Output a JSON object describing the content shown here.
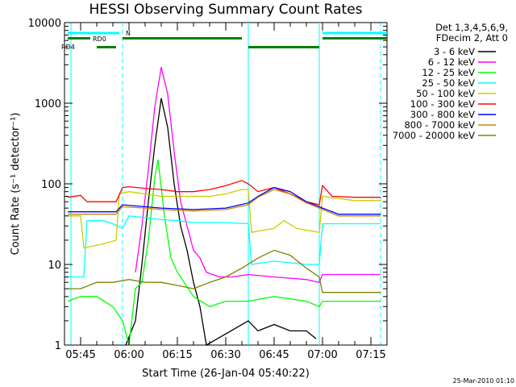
{
  "chart_data": {
    "type": "line",
    "title": "HESSI Observing Summary Count Rates",
    "xlabel": "Start Time (26-Jan-04 05:40:22)",
    "ylabel": "Count Rate (s⁻¹ detector⁻¹)",
    "y_scale": "log",
    "ylim": [
      1,
      10000
    ],
    "xlim_minutes": [
      "05:40",
      "07:20"
    ],
    "x_ticks": [
      "05:45",
      "06:00",
      "06:15",
      "06:30",
      "06:45",
      "07:00",
      "07:15"
    ],
    "y_ticks": [
      "1",
      "10",
      "100",
      "1000",
      "10000"
    ],
    "legend_header": [
      "Det 1,3,4,5,6,9,",
      "FDecim 2, Att 0"
    ],
    "timestamp": "25-Mar-2010 01:10",
    "flags": [
      {
        "label": "N",
        "color": "#00ffff"
      },
      {
        "label": "RD0",
        "color": "#008000"
      },
      {
        "label": "RD4",
        "color": "#008000"
      }
    ],
    "series": [
      {
        "name": "3 - 6 keV",
        "color": "#000000",
        "points": [
          [
            "05:59",
            1
          ],
          [
            "06:02",
            2
          ],
          [
            "06:04",
            10
          ],
          [
            "06:06",
            60
          ],
          [
            "06:08",
            300
          ],
          [
            "06:10",
            1150
          ],
          [
            "06:12",
            500
          ],
          [
            "06:14",
            100
          ],
          [
            "06:16",
            30
          ],
          [
            "06:18",
            15
          ],
          [
            "06:20",
            6
          ],
          [
            "06:22",
            3
          ],
          [
            "06:24",
            1
          ],
          [
            "06:37",
            2
          ],
          [
            "06:40",
            1.5
          ],
          [
            "06:45",
            1.8
          ],
          [
            "06:50",
            1.5
          ],
          [
            "06:55",
            1.5
          ],
          [
            "06:58",
            1.2
          ]
        ]
      },
      {
        "name": "6 - 12 keV",
        "color": "#ff00ff",
        "points": [
          [
            "06:02",
            8
          ],
          [
            "06:04",
            30
          ],
          [
            "06:06",
            150
          ],
          [
            "06:08",
            900
          ],
          [
            "06:10",
            2800
          ],
          [
            "06:12",
            1300
          ],
          [
            "06:14",
            250
          ],
          [
            "06:16",
            60
          ],
          [
            "06:18",
            30
          ],
          [
            "06:20",
            15
          ],
          [
            "06:22",
            12
          ],
          [
            "06:24",
            8
          ],
          [
            "06:28",
            7
          ],
          [
            "06:32",
            7
          ],
          [
            "06:37",
            7.5
          ],
          [
            "06:45",
            7
          ],
          [
            "06:55",
            6.5
          ],
          [
            "06:59",
            6
          ],
          [
            "07:00",
            7.5
          ],
          [
            "07:10",
            7.5
          ],
          [
            "07:18",
            7.5
          ]
        ]
      },
      {
        "name": "12 - 25 keV",
        "color": "#00ff00",
        "points": [
          [
            "05:41",
            3.5
          ],
          [
            "05:45",
            4
          ],
          [
            "05:50",
            4
          ],
          [
            "05:55",
            3
          ],
          [
            "05:58",
            2
          ],
          [
            "06:00",
            1
          ],
          [
            "06:02",
            5
          ],
          [
            "06:04",
            6
          ],
          [
            "06:06",
            20
          ],
          [
            "06:08",
            120
          ],
          [
            "06:09",
            200
          ],
          [
            "06:11",
            40
          ],
          [
            "06:13",
            12
          ],
          [
            "06:15",
            8
          ],
          [
            "06:20",
            4
          ],
          [
            "06:25",
            3
          ],
          [
            "06:30",
            3.5
          ],
          [
            "06:37",
            3.5
          ],
          [
            "06:45",
            4
          ],
          [
            "06:55",
            3.5
          ],
          [
            "06:59",
            3
          ],
          [
            "07:00",
            3.5
          ],
          [
            "07:10",
            3.5
          ],
          [
            "07:18",
            3.5
          ]
        ]
      },
      {
        "name": "25 - 50 keV",
        "color": "#00ffff",
        "points": [
          [
            "05:41",
            7
          ],
          [
            "05:45",
            7
          ],
          [
            "05:46",
            7
          ],
          [
            "05:47",
            35
          ],
          [
            "05:52",
            35
          ],
          [
            "05:55",
            32
          ],
          [
            "05:58",
            28
          ],
          [
            "06:00",
            40
          ],
          [
            "06:05",
            38
          ],
          [
            "06:10",
            36
          ],
          [
            "06:15",
            35
          ],
          [
            "06:20",
            33
          ],
          [
            "06:30",
            33
          ],
          [
            "06:37",
            32
          ],
          [
            "06:38",
            10
          ],
          [
            "06:45",
            11
          ],
          [
            "06:55",
            10
          ],
          [
            "06:59",
            10
          ],
          [
            "07:00",
            32
          ],
          [
            "07:10",
            32
          ],
          [
            "07:18",
            32
          ]
        ]
      },
      {
        "name": "50 - 100 keV",
        "color": "#cccc00",
        "points": [
          [
            "05:41",
            40
          ],
          [
            "05:45",
            40
          ],
          [
            "05:46",
            16
          ],
          [
            "05:52",
            18
          ],
          [
            "05:56",
            20
          ],
          [
            "05:57",
            75
          ],
          [
            "06:00",
            80
          ],
          [
            "06:05",
            75
          ],
          [
            "06:10",
            70
          ],
          [
            "06:15",
            70
          ],
          [
            "06:20",
            70
          ],
          [
            "06:25",
            70
          ],
          [
            "06:30",
            75
          ],
          [
            "06:35",
            85
          ],
          [
            "06:37",
            85
          ],
          [
            "06:38",
            25
          ],
          [
            "06:45",
            28
          ],
          [
            "06:48",
            35
          ],
          [
            "06:52",
            28
          ],
          [
            "06:59",
            25
          ],
          [
            "07:00",
            70
          ],
          [
            "07:10",
            62
          ],
          [
            "07:18",
            62
          ]
        ]
      },
      {
        "name": "100 - 300 keV",
        "color": "#ff0000",
        "points": [
          [
            "05:41",
            68
          ],
          [
            "05:45",
            72
          ],
          [
            "05:47",
            60
          ],
          [
            "05:56",
            60
          ],
          [
            "05:58",
            90
          ],
          [
            "06:00",
            92
          ],
          [
            "06:05",
            88
          ],
          [
            "06:10",
            85
          ],
          [
            "06:15",
            80
          ],
          [
            "06:20",
            80
          ],
          [
            "06:25",
            85
          ],
          [
            "06:30",
            95
          ],
          [
            "06:35",
            110
          ],
          [
            "06:37",
            100
          ],
          [
            "06:40",
            80
          ],
          [
            "06:45",
            90
          ],
          [
            "06:50",
            75
          ],
          [
            "06:55",
            60
          ],
          [
            "06:59",
            55
          ],
          [
            "07:00",
            95
          ],
          [
            "07:03",
            70
          ],
          [
            "07:10",
            68
          ],
          [
            "07:18",
            68
          ]
        ]
      },
      {
        "name": "300 - 800 keV",
        "color": "#0000ff",
        "points": [
          [
            "05:41",
            45
          ],
          [
            "05:45",
            45
          ],
          [
            "05:50",
            45
          ],
          [
            "05:56",
            45
          ],
          [
            "05:58",
            55
          ],
          [
            "06:05",
            52
          ],
          [
            "06:10",
            50
          ],
          [
            "06:20",
            48
          ],
          [
            "06:30",
            50
          ],
          [
            "06:37",
            58
          ],
          [
            "06:40",
            70
          ],
          [
            "06:45",
            90
          ],
          [
            "06:50",
            80
          ],
          [
            "06:55",
            60
          ],
          [
            "06:59",
            52
          ],
          [
            "07:00",
            50
          ],
          [
            "07:05",
            42
          ],
          [
            "07:10",
            42
          ],
          [
            "07:18",
            42
          ]
        ]
      },
      {
        "name": "800 - 7000 keV",
        "color": "#cc8800",
        "points": [
          [
            "05:41",
            42
          ],
          [
            "05:45",
            42
          ],
          [
            "05:50",
            42
          ],
          [
            "05:56",
            42
          ],
          [
            "05:58",
            52
          ],
          [
            "06:05",
            50
          ],
          [
            "06:10",
            48
          ],
          [
            "06:20",
            46
          ],
          [
            "06:30",
            48
          ],
          [
            "06:37",
            55
          ],
          [
            "06:40",
            68
          ],
          [
            "06:45",
            85
          ],
          [
            "06:50",
            75
          ],
          [
            "06:55",
            58
          ],
          [
            "06:59",
            50
          ],
          [
            "07:00",
            48
          ],
          [
            "07:05",
            40
          ],
          [
            "07:10",
            40
          ],
          [
            "07:18",
            40
          ]
        ]
      },
      {
        "name": "7000 - 20000 keV",
        "color": "#808000",
        "points": [
          [
            "05:41",
            5
          ],
          [
            "05:45",
            5
          ],
          [
            "05:50",
            6
          ],
          [
            "05:55",
            6
          ],
          [
            "06:00",
            6.5
          ],
          [
            "06:05",
            6
          ],
          [
            "06:10",
            6
          ],
          [
            "06:15",
            5.5
          ],
          [
            "06:20",
            5
          ],
          [
            "06:25",
            6
          ],
          [
            "06:30",
            7
          ],
          [
            "06:35",
            9
          ],
          [
            "06:40",
            12
          ],
          [
            "06:45",
            15
          ],
          [
            "06:50",
            13
          ],
          [
            "06:55",
            9
          ],
          [
            "06:59",
            7
          ],
          [
            "07:00",
            4.5
          ],
          [
            "07:05",
            4.5
          ],
          [
            "07:10",
            4.5
          ],
          [
            "07:18",
            4.5
          ]
        ]
      }
    ]
  }
}
